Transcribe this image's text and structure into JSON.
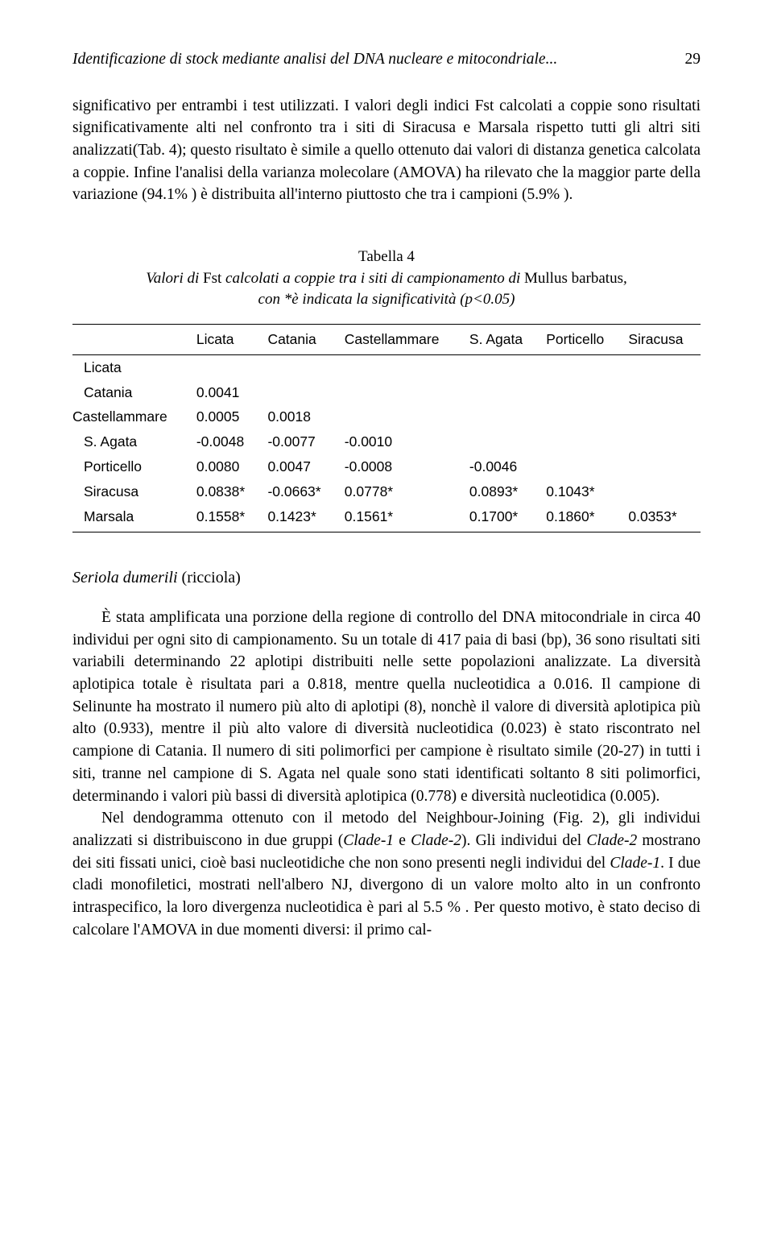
{
  "header": {
    "title": "Identificazione di stock mediante analisi del DNA nucleare e mitocondriale...",
    "page_number": "29"
  },
  "para1": "significativo per entrambi i test utilizzati. I valori degli indici Fst calcolati a coppie sono risultati significativamente alti nel confronto tra i siti di Siracusa e Marsala rispetto tutti gli altri siti analizzati(Tab. 4); questo risultato è simile a quello ottenuto dai valori di distanza genetica calcolata a coppie. Infine l'analisi della varianza molecolare (AMOVA) ha rilevato che la maggior parte della variazione (94.1% ) è distribuita all'interno piuttosto che tra i campioni (5.9% ).",
  "table": {
    "caption_line1": "Tabella 4",
    "caption_line2_pre": "Valori di ",
    "caption_line2_fst": "Fst",
    "caption_line2_mid": " calcolati a coppie tra i siti di campionamento di ",
    "caption_line2_species": "Mullus barbatus",
    "caption_line2_end": ",",
    "caption_line3": "con *è indicata la significatività (p<0.05)",
    "columns": [
      "",
      "Licata",
      "Catania",
      "Castellammare",
      "S. Agata",
      "Porticello",
      "Siracusa"
    ],
    "rows": [
      [
        "Licata",
        "",
        "",
        "",
        "",
        "",
        ""
      ],
      [
        "Catania",
        "0.0041",
        "",
        "",
        "",
        "",
        ""
      ],
      [
        "Castellammare",
        "0.0005",
        "0.0018",
        "",
        "",
        "",
        ""
      ],
      [
        "S. Agata",
        "-0.0048",
        "-0.0077",
        "-0.0010",
        "",
        "",
        ""
      ],
      [
        "Porticello",
        "0.0080",
        "0.0047",
        "-0.0008",
        "-0.0046",
        "",
        ""
      ],
      [
        "Siracusa",
        "0.0838*",
        "-0.0663*",
        "0.0778*",
        "0.0893*",
        "0.1043*",
        ""
      ],
      [
        "Marsala",
        "0.1558*",
        "0.1423*",
        "0.1561*",
        "0.1700*",
        "0.1860*",
        "0.0353*"
      ]
    ]
  },
  "section": {
    "heading_italic": "Seriola dumerili",
    "heading_paren": " (ricciola)"
  },
  "para2": "È stata amplificata una porzione della regione di controllo del DNA mitocondriale in circa 40 individui per ogni sito di campionamento. Su un totale di 417 paia di basi (bp), 36 sono risultati siti variabili determinando 22 aplotipi distribuiti nelle sette popolazioni analizzate. La diversità aplotipica totale è risultata pari a 0.818, mentre quella nucleotidica a 0.016. Il campione di Selinunte ha mostrato il numero più alto di aplotipi (8), nonchè il valore di diversità aplotipica più alto (0.933), mentre il più alto valore di diversità nucleotidica (0.023) è stato riscontrato nel campione di Catania. Il numero di siti polimorfici per campione è risultato simile (20-27) in tutti i siti, tranne nel campione di S. Agata nel quale sono stati identificati soltanto 8 siti polimorfici, determinando i valori più bassi di diversità aplotipica (0.778) e diversità nucleotidica (0.005).",
  "para3_pre": "Nel dendogramma ottenuto con il metodo del Neighbour-Joining (Fig. 2), gli individui analizzati si distribuiscono in due gruppi (",
  "para3_c1": "Clade-1",
  "para3_mid1": " e ",
  "para3_c2": "Clade-2",
  "para3_mid2": "). Gli individui del ",
  "para3_c2b": "Clade-2",
  "para3_mid3": " mostrano dei siti fissati unici, cioè basi nucleotidiche che non sono presenti negli individui del ",
  "para3_c1b": "Clade-1",
  "para3_end": ". I due cladi monofiletici, mostrati nell'albero NJ, divergono di un valore molto alto in un confronto intraspecifico, la loro divergenza nucleotidica è pari al  5.5 % . Per questo motivo, è stato deciso di calcolare l'AMOVA in due momenti diversi: il primo cal-"
}
